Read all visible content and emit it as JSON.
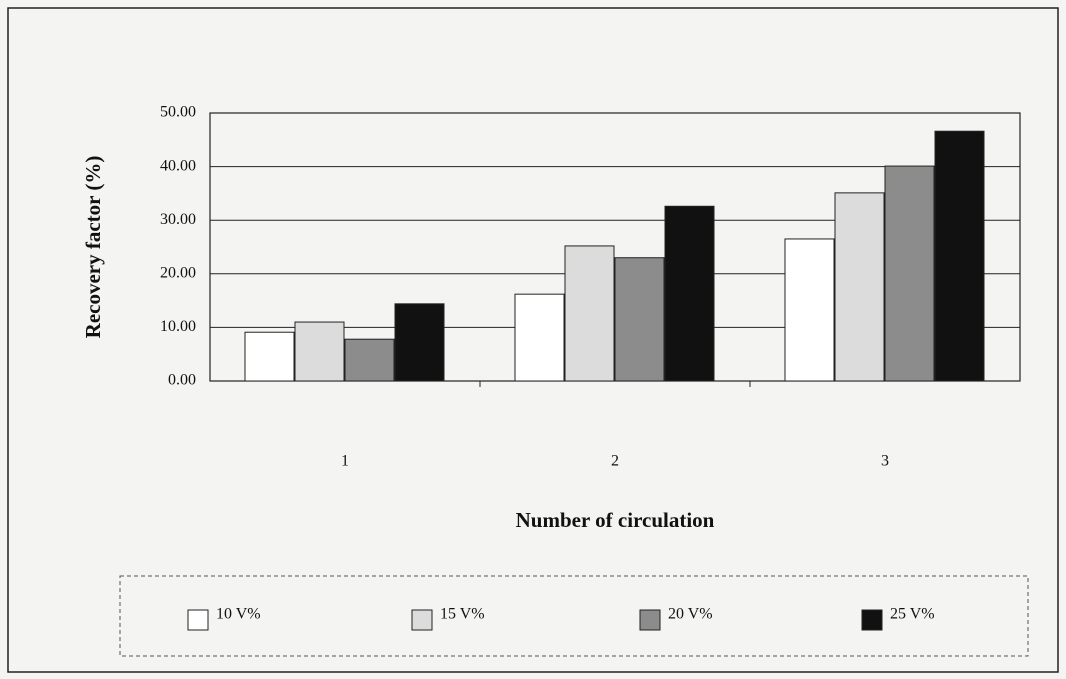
{
  "chart_data": {
    "type": "bar",
    "categories": [
      "1",
      "2",
      "3"
    ],
    "series": [
      {
        "name": "10 V%",
        "color": "#ffffff",
        "values": [
          9.1,
          16.2,
          26.5
        ]
      },
      {
        "name": "15 V%",
        "color": "#dcdcdc",
        "values": [
          11.0,
          25.2,
          35.1
        ]
      },
      {
        "name": "20 V%",
        "color": "#8c8c8c",
        "values": [
          7.8,
          23.0,
          40.1
        ]
      },
      {
        "name": "25 V%",
        "color": "#111111",
        "values": [
          14.4,
          32.6,
          46.6
        ]
      }
    ],
    "ylabel": "Recovery factor (%)",
    "xlabel": "Number of circulation",
    "ylim": [
      0,
      50
    ],
    "yticks": [
      {
        "value": 0,
        "label": "0.00"
      },
      {
        "value": 10,
        "label": "10.00"
      },
      {
        "value": 20,
        "label": "20.00"
      },
      {
        "value": 30,
        "label": "30.00"
      },
      {
        "value": 40,
        "label": "40.00"
      },
      {
        "value": 50,
        "label": "50.00"
      }
    ],
    "grid": true
  }
}
